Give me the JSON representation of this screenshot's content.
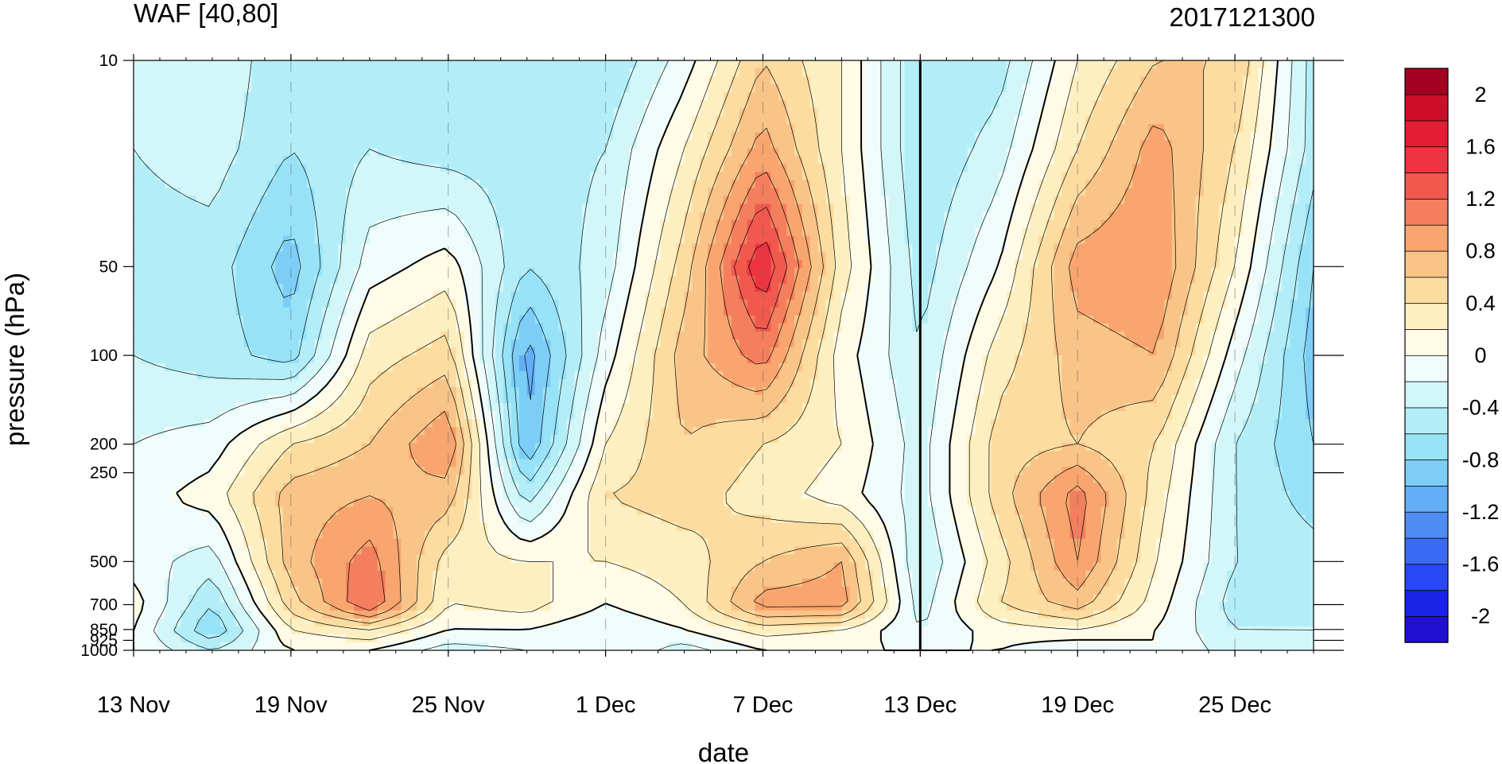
{
  "chart_data": {
    "type": "heatmap",
    "title_left": "WAF [40,80]",
    "title_right": "2017121300",
    "xlabel": "date",
    "ylabel": "pressure (hPa)",
    "x_tick_labels": [
      "13 Nov",
      "19 Nov",
      "25 Nov",
      "1 Dec",
      "7 Dec",
      "13 Dec",
      "19 Dec",
      "25 Dec"
    ],
    "x_range": [
      "2017-11-13",
      "2017-12-28"
    ],
    "y_scale": "log",
    "y_reversed": true,
    "y_tick_values": [
      10,
      50,
      100,
      200,
      250,
      500,
      700,
      850,
      925,
      1000
    ],
    "y_tick_labels": [
      "10",
      "50",
      "100",
      "200",
      "250",
      "500",
      "700",
      "850",
      "925",
      "1000"
    ],
    "ylim": [
      1000,
      10
    ],
    "vertical_line_date": "2017-12-13",
    "colorbar": {
      "levels": [
        -2.2,
        -2,
        -1.8,
        -1.6,
        -1.4,
        -1.2,
        -1,
        -0.8,
        -0.6,
        -0.4,
        -0.2,
        0,
        0.2,
        0.4,
        0.6,
        0.8,
        1,
        1.2,
        1.4,
        1.6,
        1.8,
        2,
        2.2
      ],
      "labels": [
        "2",
        "1.6",
        "1.2",
        "0.8",
        "0.4",
        "0",
        "-0.4",
        "-0.8",
        "-1.2",
        "-1.6",
        "-2"
      ],
      "colors": [
        "#1f10cf",
        "#1a23e8",
        "#2848f3",
        "#3a6af2",
        "#4f8df2",
        "#63aef5",
        "#7ccef6",
        "#97e2f7",
        "#b3eef8",
        "#d3f7f9",
        "#f0fcfb",
        "#fffbe6",
        "#fdefc0",
        "#fcdca0",
        "#f9c488",
        "#f8a56f",
        "#f47f5e",
        "#f1594f",
        "#ec3540",
        "#e31e33",
        "#cc0e2b",
        "#a1001f"
      ]
    },
    "grid_time": [
      "2017-11-13",
      "2017-11-16",
      "2017-11-19",
      "2017-11-22",
      "2017-11-25",
      "2017-11-28",
      "2017-12-01",
      "2017-12-04",
      "2017-12-07",
      "2017-12-10",
      "2017-12-13",
      "2017-12-16",
      "2017-12-19",
      "2017-12-22",
      "2017-12-25",
      "2017-12-28"
    ],
    "grid_pressure": [
      10,
      20,
      50,
      100,
      200,
      300,
      500,
      700,
      850,
      1000
    ],
    "values": [
      [
        -0.4,
        -0.2,
        -0.6,
        -0.5,
        -0.6,
        -0.6,
        -0.6,
        -0.1,
        0.6,
        0.2,
        -0.6,
        -0.5,
        0.2,
        0.6,
        0.6,
        -0.5
      ],
      [
        -0.4,
        -0.3,
        -0.6,
        -0.4,
        -0.5,
        -0.5,
        -0.4,
        0.2,
        0.9,
        0.2,
        -0.6,
        -0.3,
        0.4,
        0.9,
        0.4,
        -0.5
      ],
      [
        -0.5,
        -0.5,
        -0.9,
        -0.1,
        0.1,
        -0.6,
        -0.3,
        0.5,
        1.6,
        0.3,
        -0.5,
        0.0,
        0.9,
        1.0,
        0.2,
        -0.8
      ],
      [
        -0.4,
        -0.5,
        -0.7,
        0.3,
        0.5,
        -1.1,
        -0.1,
        0.7,
        1.1,
        0.1,
        -0.4,
        0.3,
        0.7,
        0.8,
        -0.1,
        -0.9
      ],
      [
        -0.2,
        -0.1,
        0.4,
        0.6,
        1.0,
        -1.0,
        0.2,
        0.6,
        0.4,
        0.2,
        -0.3,
        0.5,
        0.6,
        0.4,
        -0.4,
        -0.8
      ],
      [
        -0.1,
        0.1,
        0.7,
        0.8,
        0.7,
        -0.5,
        0.4,
        0.5,
        0.3,
        0.1,
        -0.3,
        0.5,
        1.1,
        0.3,
        -0.4,
        -0.7
      ],
      [
        -0.1,
        -0.3,
        0.7,
        1.1,
        0.3,
        0.2,
        0.2,
        0.3,
        0.6,
        0.8,
        -0.4,
        0.3,
        1.0,
        0.2,
        -0.4,
        -0.5
      ],
      [
        0.1,
        -0.6,
        0.5,
        1.2,
        0.2,
        0.3,
        0.0,
        0.2,
        0.9,
        0.9,
        -0.3,
        0.4,
        0.7,
        0.1,
        -0.5,
        -0.6
      ],
      [
        0.0,
        -0.8,
        0.2,
        0.4,
        0.0,
        0.0,
        -0.2,
        0.0,
        0.3,
        0.2,
        -0.2,
        0.1,
        0.2,
        0.0,
        -0.4,
        -0.4
      ],
      [
        0.0,
        -0.4,
        0.0,
        0.0,
        -0.3,
        -0.2,
        0.0,
        -0.3,
        0.0,
        0.0,
        0.0,
        0.0,
        -0.2,
        0.0,
        -0.3,
        -0.3
      ]
    ]
  }
}
